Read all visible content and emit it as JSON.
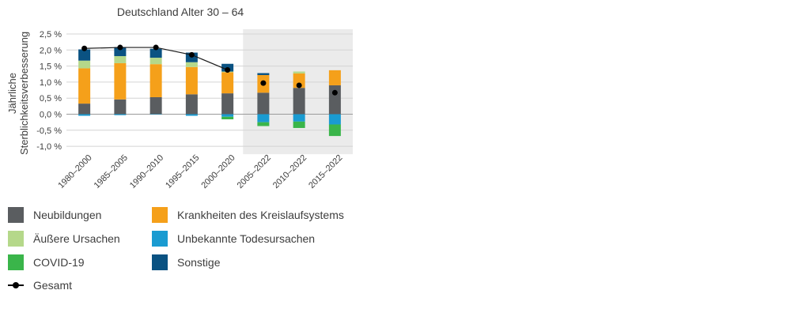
{
  "chart_data": {
    "type": "bar",
    "stacked": true,
    "title": "Deutschland Alter 30 – 64",
    "ylabel": "Jährliche Sterblichkeitsverbesserung",
    "ylabel_lines": [
      "Jährliche",
      "Sterblichkeitsverbesserung"
    ],
    "ylim": [
      -1.1,
      2.6
    ],
    "yticks": [
      -1.0,
      -0.5,
      0.0,
      0.5,
      1.0,
      1.5,
      2.0,
      2.5
    ],
    "ytick_labels": [
      "-1,0 %",
      "-0,5 %",
      "0,0 %",
      "0,5 %",
      "1,0 %",
      "1,5 %",
      "2,0 %",
      "2,5 %"
    ],
    "categories": [
      "1980–2000",
      "1985–2005",
      "1990–2010",
      "1995–2015",
      "2000–2020",
      "2005–2022",
      "2010–2022",
      "2015–2022"
    ],
    "shaded_categories": [
      "2005–2022",
      "2010–2022",
      "2015–2022"
    ],
    "series": [
      {
        "name": "Neubildungen",
        "color": "#5a5d60",
        "values": [
          0.33,
          0.46,
          0.53,
          0.62,
          0.65,
          0.67,
          0.82,
          0.9
        ]
      },
      {
        "name": "Krankheiten des Kreislaufsystems",
        "color": "#f5a01a",
        "values": [
          1.1,
          1.13,
          1.03,
          0.85,
          0.66,
          0.55,
          0.45,
          0.47
        ]
      },
      {
        "name": "Äußere Ursachen",
        "color": "#b5d88a",
        "values": [
          0.24,
          0.22,
          0.2,
          0.15,
          0.02,
          0.0,
          0.06,
          0.0
        ]
      },
      {
        "name": "Unbekannte Todesursachen",
        "color": "#1a9bd1",
        "values": [
          -0.05,
          -0.03,
          -0.01,
          -0.05,
          -0.08,
          -0.25,
          -0.23,
          -0.32
        ]
      },
      {
        "name": "COVID-19",
        "color": "#3ab54a",
        "values": [
          0.0,
          0.0,
          0.0,
          0.0,
          -0.08,
          -0.12,
          -0.2,
          -0.36
        ]
      },
      {
        "name": "Sonstige",
        "color": "#0a5282",
        "values": [
          0.35,
          0.28,
          0.28,
          0.3,
          0.24,
          0.06,
          0.0,
          0.0
        ]
      }
    ],
    "total": {
      "name": "Gesamt",
      "values": [
        2.05,
        2.08,
        2.08,
        1.85,
        1.38,
        0.97,
        0.9,
        0.67
      ],
      "line_until_index": 4
    },
    "grid": true,
    "legend_position": "bottom"
  }
}
